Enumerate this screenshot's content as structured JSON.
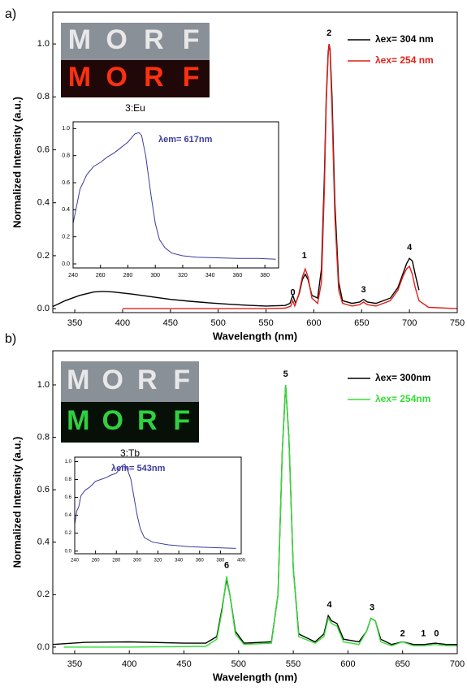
{
  "chart_data": [
    {
      "type": "line",
      "panel_label": "a)",
      "xlabel": "Wavelength (nm)",
      "ylabel": "Normalized Intensity (a.u.)",
      "xlim": [
        327,
        750
      ],
      "ylim": [
        -0.015,
        1.12
      ],
      "xticks": [
        350,
        400,
        450,
        500,
        550,
        600,
        650,
        700,
        750
      ],
      "yticks": [
        {
          "value": 0,
          "label": "0.0"
        },
        {
          "value": 0.2,
          "label": "0.2"
        },
        {
          "value": 0.4,
          "label": "0.4"
        },
        {
          "value": 0.6,
          "label": "0.6"
        },
        {
          "value": 0.8,
          "label": "0.8"
        },
        {
          "value": 1.0,
          "label": "1.0"
        }
      ],
      "legend": "upper right",
      "photo_letters": [
        "M",
        "O",
        "R",
        "F"
      ],
      "photo_caption": "3:Eu",
      "photo_color": "#ff3010",
      "annotations": [
        "0",
        "1",
        "2",
        "3",
        "4"
      ],
      "series": [
        {
          "name": "λex= 304 nm",
          "color": "#000000",
          "x": [
            327,
            340,
            355,
            370,
            380,
            390,
            410,
            430,
            450,
            470,
            490,
            510,
            530,
            550,
            570,
            575,
            578,
            581,
            585,
            588,
            591,
            594,
            598,
            604,
            608,
            611,
            613,
            615,
            616,
            617,
            619,
            622,
            626,
            630,
            640,
            648,
            652,
            656,
            665,
            680,
            688,
            693,
            697,
            700,
            703,
            706,
            710
          ],
          "values": [
            0.008,
            0.03,
            0.05,
            0.063,
            0.065,
            0.063,
            0.055,
            0.045,
            0.035,
            0.028,
            0.022,
            0.017,
            0.013,
            0.01,
            0.012,
            0.02,
            0.05,
            0.02,
            0.06,
            0.11,
            0.13,
            0.11,
            0.05,
            0.04,
            0.15,
            0.5,
            0.8,
            0.97,
            1.0,
            0.98,
            0.8,
            0.4,
            0.1,
            0.03,
            0.02,
            0.025,
            0.035,
            0.025,
            0.02,
            0.04,
            0.08,
            0.13,
            0.17,
            0.19,
            0.18,
            0.13,
            0.07
          ]
        },
        {
          "name": "λex= 254 nm",
          "color": "#e0201a",
          "x": [
            400,
            450,
            500,
            550,
            570,
            576,
            578,
            580,
            584,
            588,
            591,
            594,
            598,
            604,
            608,
            611,
            613,
            615,
            616,
            617,
            619,
            622,
            626,
            630,
            640,
            648,
            652,
            656,
            665,
            680,
            688,
            693,
            697,
            700,
            703,
            706,
            710,
            720,
            750
          ],
          "values": [
            0,
            0,
            0,
            0,
            0.002,
            0.01,
            0.03,
            0.01,
            0.05,
            0.12,
            0.15,
            0.12,
            0.04,
            0.02,
            0.1,
            0.45,
            0.78,
            0.96,
            1.0,
            0.97,
            0.75,
            0.35,
            0.07,
            0.02,
            0.01,
            0.015,
            0.025,
            0.015,
            0.01,
            0.03,
            0.07,
            0.12,
            0.15,
            0.16,
            0.13,
            0.08,
            0.03,
            0.005,
            0
          ]
        }
      ]
    },
    {
      "type": "line",
      "inset": true,
      "annotation": "λem= 617nm",
      "xlim": [
        240,
        390
      ],
      "ylim": [
        -0.03,
        1.05
      ],
      "xticks": [
        240,
        260,
        280,
        300,
        320,
        340,
        360,
        380
      ],
      "yticks": [
        {
          "value": 0,
          "label": "0.0"
        },
        {
          "value": 0.2,
          "label": "0.2"
        },
        {
          "value": 0.4,
          "label": "0.4"
        },
        {
          "value": 0.6,
          "label": "0.6"
        },
        {
          "value": 0.8,
          "label": "0.8"
        },
        {
          "value": 1.0,
          "label": "1.0"
        }
      ],
      "series": [
        {
          "color": "#3a3aa0",
          "x": [
            240,
            242,
            245,
            250,
            255,
            260,
            265,
            270,
            275,
            280,
            285,
            288,
            290,
            293,
            297,
            300,
            303,
            307,
            312,
            320,
            330,
            345,
            360,
            375,
            388
          ],
          "values": [
            0.3,
            0.4,
            0.55,
            0.66,
            0.72,
            0.75,
            0.79,
            0.82,
            0.86,
            0.9,
            0.96,
            0.97,
            0.95,
            0.8,
            0.5,
            0.3,
            0.18,
            0.12,
            0.08,
            0.06,
            0.05,
            0.045,
            0.04,
            0.04,
            0.035
          ]
        }
      ]
    },
    {
      "type": "line",
      "panel_label": "b)",
      "xlabel": "Wavelength (nm)",
      "ylabel": "Normalized Intensity (a.u.)",
      "xlim": [
        330,
        700
      ],
      "ylim": [
        -0.025,
        1.13
      ],
      "xticks": [
        350,
        400,
        450,
        500,
        550,
        600,
        650,
        700
      ],
      "yticks": [
        {
          "value": 0,
          "label": "0.0"
        },
        {
          "value": 0.2,
          "label": "0.2"
        },
        {
          "value": 0.4,
          "label": "0.4"
        },
        {
          "value": 0.6,
          "label": "0.6"
        },
        {
          "value": 0.8,
          "label": "0.8"
        },
        {
          "value": 1.0,
          "label": "1.0"
        }
      ],
      "legend": "upper right",
      "photo_letters": [
        "M",
        "O",
        "R",
        "F"
      ],
      "photo_caption": "3:Tb",
      "photo_color": "#30d040",
      "annotations": [
        "6",
        "5",
        "4",
        "3",
        "2",
        "1",
        "0"
      ],
      "series": [
        {
          "name": "λex= 300nm",
          "color": "#000000",
          "x": [
            330,
            360,
            400,
            450,
            470,
            480,
            485,
            489,
            492,
            497,
            505,
            530,
            536,
            540,
            543,
            546,
            550,
            555,
            570,
            578,
            582,
            585,
            590,
            596,
            610,
            617,
            621,
            625,
            630,
            640,
            650,
            660,
            670,
            680,
            690,
            700
          ],
          "values": [
            0.01,
            0.018,
            0.02,
            0.015,
            0.015,
            0.04,
            0.15,
            0.26,
            0.2,
            0.06,
            0.015,
            0.02,
            0.2,
            0.75,
            1.0,
            0.8,
            0.3,
            0.05,
            0.02,
            0.05,
            0.12,
            0.1,
            0.09,
            0.03,
            0.02,
            0.06,
            0.11,
            0.1,
            0.03,
            0.01,
            0.02,
            0.01,
            0.01,
            0.015,
            0.01,
            0.01
          ]
        },
        {
          "name": "λex= 254nm",
          "color": "#33dd33",
          "x": [
            340,
            400,
            470,
            480,
            485,
            489,
            492,
            497,
            505,
            530,
            536,
            540,
            543,
            546,
            550,
            555,
            570,
            578,
            582,
            585,
            590,
            596,
            610,
            617,
            621,
            625,
            630,
            640,
            650,
            660,
            670,
            680,
            690,
            700
          ],
          "values": [
            0,
            0,
            0.003,
            0.03,
            0.14,
            0.27,
            0.2,
            0.05,
            0.01,
            0.015,
            0.2,
            0.75,
            1.0,
            0.8,
            0.3,
            0.04,
            0.015,
            0.04,
            0.11,
            0.09,
            0.08,
            0.02,
            0.01,
            0.06,
            0.11,
            0.1,
            0.02,
            0.005,
            0.02,
            0.005,
            0.005,
            0.01,
            0.005,
            0.005
          ]
        }
      ]
    },
    {
      "type": "line",
      "inset": true,
      "annotation": "λem= 543nm",
      "xlim": [
        240,
        400
      ],
      "ylim": [
        -0.03,
        1.05
      ],
      "xticks": [
        240,
        260,
        280,
        300,
        320,
        340,
        360,
        380,
        400
      ],
      "yticks": [
        {
          "value": 0,
          "label": "0.0"
        },
        {
          "value": 0.2,
          "label": "0.2"
        },
        {
          "value": 0.4,
          "label": "0.4"
        },
        {
          "value": 0.6,
          "label": "0.6"
        },
        {
          "value": 0.8,
          "label": "0.8"
        },
        {
          "value": 1.0,
          "label": "1.0"
        }
      ],
      "series": [
        {
          "color": "#3a3aa0",
          "x": [
            240,
            242,
            244,
            246,
            250,
            255,
            260,
            265,
            270,
            275,
            280,
            285,
            288,
            291,
            294,
            297,
            300,
            303,
            307,
            315,
            330,
            350,
            370,
            395
          ],
          "values": [
            0.3,
            0.45,
            0.5,
            0.62,
            0.68,
            0.72,
            0.78,
            0.8,
            0.82,
            0.85,
            0.87,
            0.95,
            0.97,
            0.9,
            0.8,
            0.6,
            0.4,
            0.25,
            0.15,
            0.1,
            0.07,
            0.05,
            0.04,
            0.03
          ]
        }
      ]
    }
  ]
}
